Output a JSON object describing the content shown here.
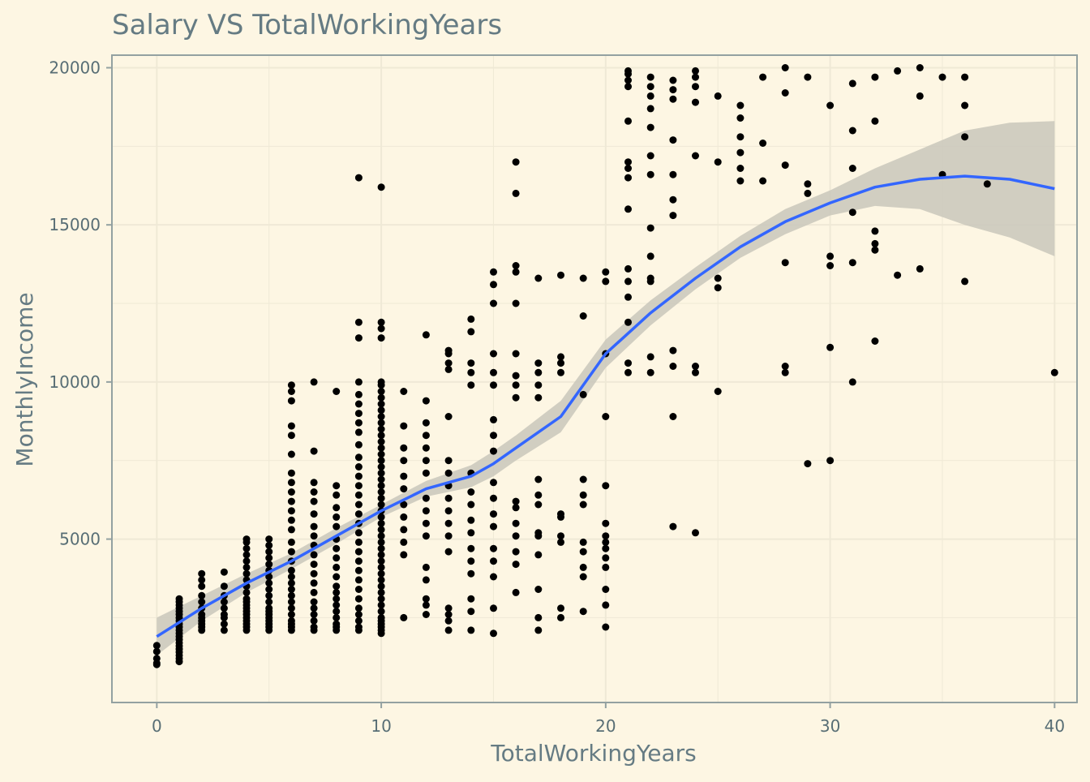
{
  "chart_data": {
    "type": "scatter",
    "title": "Salary VS TotalWorkingYears",
    "xlabel": "TotalWorkingYears",
    "ylabel": "MonthlyIncome",
    "xlim": [
      -2,
      41
    ],
    "ylim": [
      -200,
      20400
    ],
    "x_ticks": [
      0,
      10,
      20,
      30,
      40
    ],
    "y_ticks": [
      5000,
      10000,
      15000,
      20000
    ],
    "x_tick_labels": [
      "0",
      "10",
      "20",
      "30",
      "40"
    ],
    "y_tick_labels": [
      "5000",
      "10000",
      "15000",
      "20000"
    ],
    "grid": true,
    "colors": {
      "background": "#fdf6e3",
      "grid": "#efe9d6",
      "frame": "#93a1a1",
      "text": "#657b83",
      "points": "#000000",
      "smooth_line": "#3366ff",
      "confidence_band": "#c9c7bb"
    },
    "point_columns": [
      {
        "x": 0,
        "values": [
          1009,
          1051,
          1200,
          1420,
          1611
        ]
      },
      {
        "x": 1,
        "values": [
          1100,
          1200,
          1300,
          1400,
          1500,
          1600,
          1700,
          1800,
          1900,
          2000,
          2100,
          2200,
          2300,
          2400,
          2500,
          2600,
          2700,
          2800,
          2900,
          3000,
          3100
        ]
      },
      {
        "x": 2,
        "values": [
          2100,
          2200,
          2300,
          2400,
          2500,
          2600,
          2800,
          3000,
          3200,
          3500,
          3700,
          3900
        ]
      },
      {
        "x": 3,
        "values": [
          2100,
          2300,
          2500,
          2600,
          2800,
          3000,
          3200,
          3500,
          3950
        ]
      },
      {
        "x": 4,
        "values": [
          2100,
          2200,
          2300,
          2400,
          2500,
          2600,
          2700,
          2800,
          2900,
          3000,
          3100,
          3300,
          3500,
          3700,
          3900,
          4100,
          4300,
          4500,
          4700,
          4900,
          5000
        ]
      },
      {
        "x": 5,
        "values": [
          2100,
          2200,
          2300,
          2400,
          2500,
          2600,
          2700,
          2800,
          3000,
          3200,
          3400,
          3600,
          3800,
          4000,
          4200,
          4400,
          4600,
          4800,
          5000
        ]
      },
      {
        "x": 6,
        "values": [
          2100,
          2200,
          2300,
          2400,
          2600,
          2800,
          3000,
          3200,
          3400,
          3600,
          3800,
          4000,
          4300,
          4600,
          4900,
          5300,
          5600,
          5900,
          6200,
          6500,
          6800,
          7100,
          7700,
          8300,
          8600,
          9400,
          9700,
          9900
        ]
      },
      {
        "x": 7,
        "values": [
          2100,
          2200,
          2400,
          2600,
          2800,
          3000,
          3300,
          3600,
          3900,
          4200,
          4500,
          4800,
          5100,
          5400,
          5800,
          6200,
          6500,
          6800,
          7800,
          10000
        ]
      },
      {
        "x": 8,
        "values": [
          2100,
          2200,
          2300,
          2500,
          2700,
          2900,
          3100,
          3300,
          3500,
          3800,
          4100,
          4400,
          4700,
          5000,
          5400,
          5700,
          6000,
          6400,
          6700,
          9700
        ]
      },
      {
        "x": 9,
        "values": [
          2100,
          2200,
          2400,
          2600,
          2800,
          3100,
          3400,
          3700,
          4000,
          4300,
          4600,
          4900,
          5200,
          5500,
          5800,
          6100,
          6400,
          6700,
          7000,
          7300,
          7600,
          8000,
          8400,
          8700,
          9000,
          9300,
          9600,
          10000,
          11400,
          11900,
          16500
        ]
      },
      {
        "x": 10,
        "values": [
          2000,
          2100,
          2200,
          2300,
          2400,
          2500,
          2700,
          2900,
          3100,
          3300,
          3500,
          3700,
          3900,
          4100,
          4300,
          4500,
          4700,
          4900,
          5100,
          5300,
          5500,
          5700,
          5900,
          6100,
          6300,
          6500,
          6700,
          6900,
          7100,
          7300,
          7500,
          7700,
          7900,
          8100,
          8300,
          8500,
          8700,
          8900,
          9100,
          9300,
          9500,
          9700,
          9900,
          10000,
          11400,
          11700,
          11900,
          16200
        ]
      },
      {
        "x": 11,
        "values": [
          2500,
          4500,
          4900,
          5300,
          5700,
          6100,
          6600,
          7000,
          7500,
          7900,
          8600,
          9700
        ]
      },
      {
        "x": 12,
        "values": [
          2600,
          2900,
          3100,
          3700,
          4100,
          5100,
          5500,
          5900,
          6300,
          7100,
          7500,
          7900,
          8300,
          8700,
          9400,
          11500
        ]
      },
      {
        "x": 13,
        "values": [
          2100,
          2400,
          2600,
          2800,
          4600,
          5100,
          5500,
          5900,
          6300,
          6700,
          7100,
          7500,
          8900,
          10400,
          10600,
          10900,
          11000
        ]
      },
      {
        "x": 14,
        "values": [
          2100,
          2700,
          3100,
          3900,
          4300,
          4700,
          5200,
          5600,
          6100,
          6500,
          7100,
          9900,
          10300,
          10600,
          11600,
          12000
        ]
      },
      {
        "x": 15,
        "values": [
          2000,
          2800,
          3800,
          4300,
          4700,
          5400,
          5800,
          6300,
          6800,
          7800,
          8300,
          8800,
          9900,
          10300,
          10900,
          12500,
          13100,
          13500
        ]
      },
      {
        "x": 16,
        "values": [
          3300,
          4200,
          4600,
          5100,
          5500,
          6000,
          6200,
          9500,
          9900,
          10200,
          10900,
          12500,
          13500,
          13700,
          16000,
          17000
        ]
      },
      {
        "x": 17,
        "values": [
          2100,
          2500,
          3400,
          4500,
          5100,
          5200,
          6100,
          6400,
          6900,
          9500,
          9900,
          10300,
          10600,
          13300
        ]
      },
      {
        "x": 18,
        "values": [
          2500,
          2800,
          4900,
          5100,
          5700,
          5800,
          10300,
          10600,
          10800,
          13400
        ]
      },
      {
        "x": 19,
        "values": [
          2700,
          3800,
          4100,
          4600,
          4900,
          6100,
          6400,
          6900,
          9600,
          12100,
          13300
        ]
      },
      {
        "x": 20,
        "values": [
          2200,
          2900,
          3400,
          4100,
          4400,
          4700,
          4900,
          5100,
          5500,
          6700,
          8900,
          10900,
          13200,
          13500
        ]
      },
      {
        "x": 21,
        "values": [
          10300,
          10600,
          11900,
          12700,
          13200,
          13600,
          15500,
          16500,
          16800,
          17000,
          18300,
          19400,
          19600,
          19800,
          19900
        ]
      },
      {
        "x": 22,
        "values": [
          10300,
          10800,
          13200,
          13300,
          14000,
          14900,
          16600,
          17200,
          18100,
          18700,
          19100,
          19400,
          19700
        ]
      },
      {
        "x": 23,
        "values": [
          5400,
          8900,
          10500,
          11000,
          15300,
          15800,
          16600,
          17700,
          19000,
          19300,
          19600
        ]
      },
      {
        "x": 24,
        "values": [
          5200,
          10300,
          10500,
          17200,
          18900,
          19400,
          19700,
          19900
        ]
      },
      {
        "x": 25,
        "values": [
          9700,
          13000,
          13300,
          17000,
          19100
        ]
      },
      {
        "x": 26,
        "values": [
          16400,
          16800,
          17300,
          17800,
          18400,
          18800
        ]
      },
      {
        "x": 27,
        "values": [
          16400,
          17600,
          19700
        ]
      },
      {
        "x": 28,
        "values": [
          10300,
          10500,
          13800,
          16900,
          19200,
          20000
        ]
      },
      {
        "x": 29,
        "values": [
          7400,
          16000,
          16300,
          19700
        ]
      },
      {
        "x": 30,
        "values": [
          7500,
          11100,
          13700,
          14000,
          18800
        ]
      },
      {
        "x": 31,
        "values": [
          10000,
          13800,
          15400,
          16800,
          18000,
          19500
        ]
      },
      {
        "x": 32,
        "values": [
          11300,
          14200,
          14400,
          14800,
          18300,
          19700
        ]
      },
      {
        "x": 33,
        "values": [
          13400,
          19900
        ]
      },
      {
        "x": 34,
        "values": [
          13600,
          19100,
          20000
        ]
      },
      {
        "x": 35,
        "values": [
          16600,
          19700
        ]
      },
      {
        "x": 36,
        "values": [
          13200,
          17800,
          18800,
          19700
        ]
      },
      {
        "x": 37,
        "values": [
          16300
        ]
      },
      {
        "x": 40,
        "values": [
          10300
        ]
      }
    ],
    "smooth_line": {
      "x": [
        0,
        2,
        4,
        6,
        8,
        10,
        12,
        14,
        15,
        16,
        18,
        20,
        22,
        24,
        26,
        28,
        30,
        32,
        34,
        36,
        38,
        40
      ],
      "y": [
        1900,
        2800,
        3600,
        4300,
        5100,
        5900,
        6600,
        7000,
        7400,
        7900,
        8900,
        10900,
        12200,
        13300,
        14300,
        15100,
        15700,
        16200,
        16450,
        16550,
        16450,
        16150
      ],
      "lower": [
        1300,
        2400,
        3300,
        4050,
        4850,
        5700,
        6350,
        6650,
        7000,
        7500,
        8400,
        10450,
        11800,
        12950,
        13950,
        14700,
        15300,
        15600,
        15500,
        15000,
        14600,
        14000
      ],
      "upper": [
        2500,
        3200,
        3900,
        4550,
        5350,
        6100,
        6850,
        7350,
        7800,
        8300,
        9400,
        11350,
        12600,
        13650,
        14650,
        15500,
        16100,
        16800,
        17400,
        18000,
        18250,
        18300
      ]
    }
  }
}
